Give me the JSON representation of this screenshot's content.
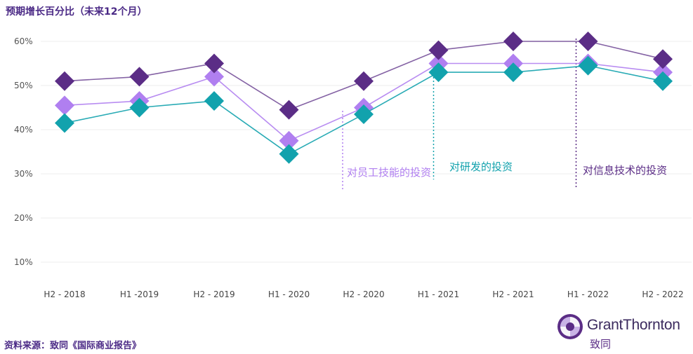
{
  "title": "预期增长百分比（未来12个月）",
  "source": "资料来源：致同《国际商业报告》",
  "brand": {
    "name": "GrantThornton",
    "cn_name": "致同"
  },
  "chart_data": {
    "type": "line",
    "title": "预期增长百分比（未来12个月）",
    "categories": [
      "H2 - 2018",
      "H1 -2019",
      "H2 - 2019",
      "H1 - 2020",
      "H2 - 2020",
      "H1 - 2021",
      "H2 - 2021",
      "H1 - 2022",
      "H2 - 2022"
    ],
    "y_ticks": [
      "60%",
      "50%",
      "40%",
      "30%",
      "20%",
      "10%"
    ],
    "ylim": [
      10,
      60
    ],
    "grid": true,
    "series": [
      {
        "name": "对信息技术的投资",
        "color": "#5b2d86",
        "values": [
          51,
          52,
          55,
          44.5,
          51,
          58,
          60,
          60,
          56
        ]
      },
      {
        "name": "对员工技能的投资",
        "color": "#b07ff0",
        "values": [
          45.5,
          46.5,
          52,
          37.5,
          45,
          55,
          55,
          55,
          53
        ]
      },
      {
        "name": "对研发的投资",
        "color": "#12a2ad",
        "values": [
          41.5,
          45,
          46.5,
          34.5,
          43.5,
          53,
          53,
          54.5,
          51
        ]
      }
    ],
    "annotations": [
      {
        "text": "对员工技能的投资",
        "category": "H2 - 2020",
        "color": "#b07ff0"
      },
      {
        "text": "对研发的投资",
        "category": "H1 - 2021",
        "color": "#12a2ad"
      },
      {
        "text": "对信息技术的投资",
        "category": "H1 - 2022",
        "color": "#5b2d86"
      }
    ]
  }
}
